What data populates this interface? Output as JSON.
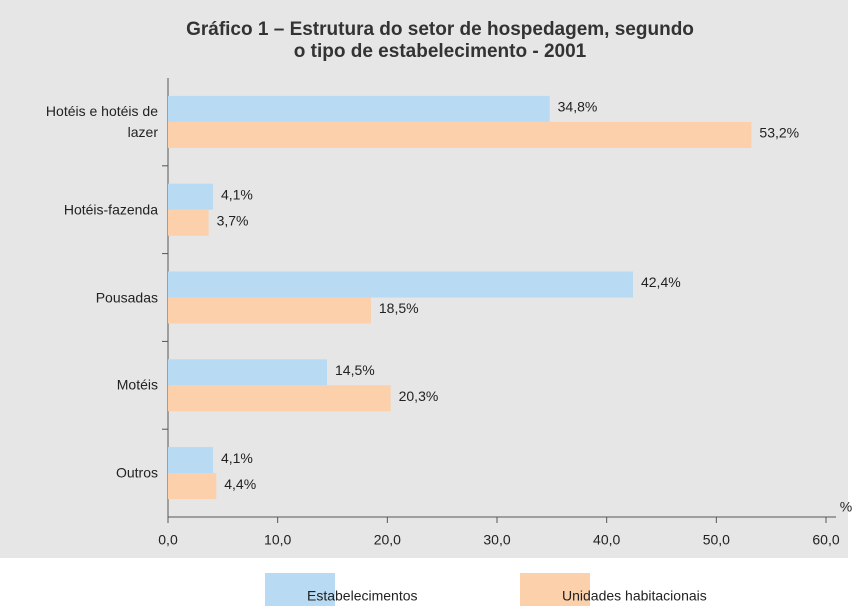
{
  "chart_data": {
    "type": "bar",
    "orientation": "horizontal",
    "title": [
      "Gráfico 1 – Estrutura do setor de hospedagem, segundo",
      "o tipo de estabelecimento - 2001"
    ],
    "categories": [
      "Hotéis e hotéis de lazer",
      "Hotéis-fazenda",
      "Pousadas",
      "Motéis",
      "Outros"
    ],
    "series": [
      {
        "name": "Estabelecimentos",
        "color": "#b8daf2",
        "values": [
          34.8,
          4.1,
          42.4,
          14.5,
          4.1
        ],
        "value_labels": [
          "34,8%",
          "4,1%",
          "42,4%",
          "14,5%",
          "4,1%"
        ]
      },
      {
        "name": "Unidades habitacionais",
        "color": "#fbd0aa",
        "values": [
          53.2,
          3.7,
          18.5,
          20.3,
          4.4
        ],
        "value_labels": [
          "53,2%",
          "3,7%",
          "18,5%",
          "20,3%",
          "4,4%"
        ]
      }
    ],
    "xlabel": "%",
    "xlim": [
      0,
      60
    ],
    "xticks": [
      {
        "value": 0,
        "label": "0,0"
      },
      {
        "value": 10,
        "label": "10,0"
      },
      {
        "value": 20,
        "label": "20,0"
      },
      {
        "value": 30,
        "label": "30,0"
      },
      {
        "value": 40,
        "label": "40,0"
      },
      {
        "value": 50,
        "label": "50,0"
      },
      {
        "value": 60,
        "label": "60,0"
      }
    ],
    "grid": false,
    "legend": "bottom"
  }
}
